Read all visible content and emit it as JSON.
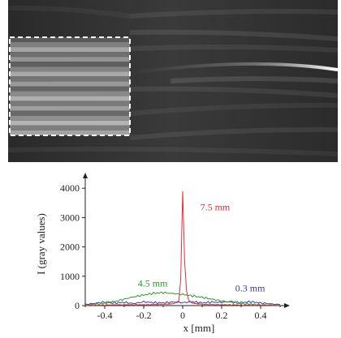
{
  "colors": {
    "photo_background": "#1e1e1e",
    "roi_box": "#ffffff",
    "axis": "#222222"
  },
  "photo": {
    "description_icon": "grayscale-photograph",
    "roi_stripes": 20
  },
  "chart_data": {
    "type": "line",
    "xlabel": "x [mm]",
    "ylabel": "I (gray values)",
    "xlim": [
      -0.5,
      0.5
    ],
    "ylim": [
      0,
      4200
    ],
    "xticks": [
      -0.4,
      -0.2,
      0,
      0.2,
      0.4
    ],
    "xtick_labels": [
      "-0.4",
      "-0.2",
      "0",
      "0.2",
      "0.4"
    ],
    "yticks": [
      0,
      1000,
      2000,
      3000,
      4000
    ],
    "ytick_labels": [
      "0",
      "1000",
      "2000",
      "3000",
      "4000"
    ],
    "series": [
      {
        "name": "0.3 mm",
        "color": "#3a3f9a",
        "x": [
          -0.5,
          -0.45,
          -0.4,
          -0.35,
          -0.3,
          -0.25,
          -0.2,
          -0.15,
          -0.1,
          -0.05,
          0,
          0.05,
          0.1,
          0.15,
          0.2,
          0.25,
          0.3,
          0.35,
          0.4,
          0.45,
          0.5
        ],
        "values": [
          40,
          80,
          120,
          90,
          110,
          70,
          130,
          100,
          90,
          120,
          100,
          130,
          90,
          120,
          110,
          140,
          100,
          130,
          90,
          60,
          30
        ]
      },
      {
        "name": "4.5 mm",
        "color": "#2e9a2e",
        "x": [
          -0.5,
          -0.45,
          -0.4,
          -0.35,
          -0.3,
          -0.25,
          -0.2,
          -0.15,
          -0.1,
          -0.05,
          0,
          0.05,
          0.1,
          0.15,
          0.2,
          0.25,
          0.3,
          0.35,
          0.4,
          0.45,
          0.5
        ],
        "values": [
          20,
          40,
          80,
          140,
          220,
          300,
          360,
          420,
          440,
          410,
          380,
          330,
          280,
          220,
          160,
          110,
          70,
          50,
          30,
          20,
          10
        ]
      },
      {
        "name": "7.5 mm",
        "color": "#e0303a",
        "x": [
          -0.5,
          -0.4,
          -0.3,
          -0.2,
          -0.1,
          -0.05,
          -0.02,
          -0.01,
          0,
          0.01,
          0.02,
          0.03,
          0.05,
          0.1,
          0.2,
          0.3,
          0.4,
          0.5
        ],
        "values": [
          10,
          20,
          30,
          30,
          40,
          60,
          150,
          900,
          3900,
          1500,
          500,
          200,
          80,
          40,
          30,
          20,
          15,
          10
        ]
      }
    ],
    "annotations": [
      {
        "text": "7.5 mm",
        "x": 0.09,
        "y": 3250,
        "color": "#e0303a"
      },
      {
        "text": "4.5 mm",
        "x": -0.23,
        "y": 650,
        "color": "#2e9a2e"
      },
      {
        "text": "0.3 mm",
        "x": 0.27,
        "y": 480,
        "color": "#3a3f9a"
      }
    ]
  }
}
